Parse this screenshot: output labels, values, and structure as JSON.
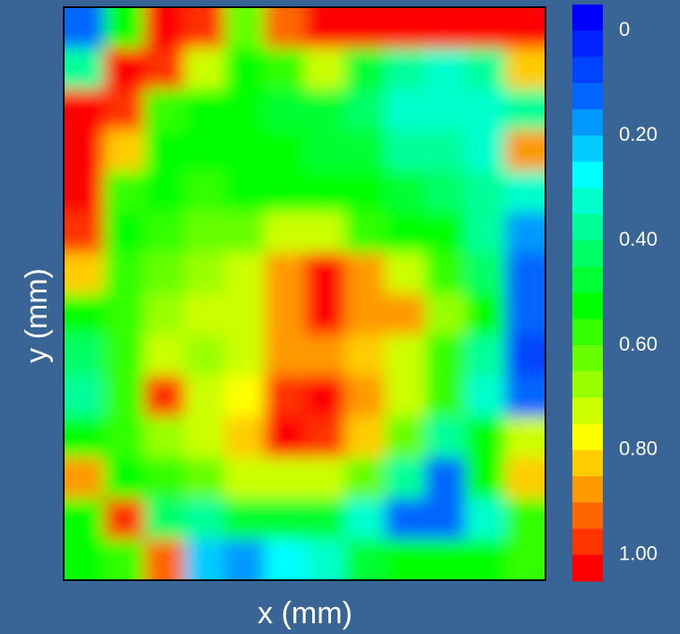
{
  "chart_data": {
    "type": "contour",
    "xlabel": "x (mm)",
    "ylabel": "y (mm)",
    "z": [
      [
        0.1,
        0.5,
        1.0,
        0.95,
        0.6,
        0.9,
        1.0,
        1.0,
        1.0,
        1.0,
        1.0,
        1.0
      ],
      [
        0.35,
        1.0,
        0.95,
        0.7,
        0.5,
        0.55,
        0.7,
        0.45,
        0.35,
        0.3,
        0.35,
        0.8
      ],
      [
        1.0,
        0.95,
        0.55,
        0.5,
        0.5,
        0.45,
        0.45,
        0.4,
        0.3,
        0.3,
        0.3,
        0.35
      ],
      [
        1.0,
        0.8,
        0.5,
        0.5,
        0.5,
        0.5,
        0.45,
        0.45,
        0.35,
        0.35,
        0.3,
        0.85
      ],
      [
        1.0,
        0.55,
        0.5,
        0.55,
        0.5,
        0.5,
        0.5,
        0.5,
        0.45,
        0.4,
        0.35,
        0.3
      ],
      [
        0.95,
        0.5,
        0.55,
        0.6,
        0.6,
        0.7,
        0.7,
        0.55,
        0.5,
        0.5,
        0.35,
        0.15
      ],
      [
        0.8,
        0.55,
        0.6,
        0.65,
        0.7,
        0.85,
        1.0,
        0.85,
        0.7,
        0.55,
        0.4,
        0.1
      ],
      [
        0.5,
        0.55,
        0.65,
        0.7,
        0.7,
        0.85,
        1.0,
        0.85,
        0.85,
        0.65,
        0.5,
        0.1
      ],
      [
        0.4,
        0.55,
        0.7,
        0.65,
        0.7,
        0.85,
        0.85,
        0.8,
        0.7,
        0.55,
        0.35,
        0.05
      ],
      [
        0.35,
        0.55,
        0.95,
        0.7,
        0.75,
        0.95,
        1.0,
        0.85,
        0.7,
        0.55,
        0.3,
        0.1
      ],
      [
        0.5,
        0.55,
        0.65,
        0.7,
        0.8,
        1.0,
        0.95,
        0.8,
        0.6,
        0.35,
        0.5,
        0.7
      ],
      [
        0.85,
        0.5,
        0.55,
        0.6,
        0.7,
        0.7,
        0.7,
        0.6,
        0.35,
        0.1,
        0.5,
        0.8
      ],
      [
        0.5,
        0.95,
        0.4,
        0.35,
        0.45,
        0.45,
        0.45,
        0.3,
        0.1,
        0.1,
        0.3,
        0.55
      ],
      [
        0.5,
        0.55,
        0.9,
        0.2,
        0.15,
        0.25,
        0.3,
        0.45,
        0.5,
        0.5,
        0.5,
        0.55
      ]
    ],
    "zlim": [
      -0.05,
      1.05
    ],
    "colors": [
      "#0000ff",
      "#0022ff",
      "#0044ff",
      "#0066ff",
      "#0099ff",
      "#00ccff",
      "#00ffff",
      "#00ffcc",
      "#00ff99",
      "#00ff66",
      "#00ff33",
      "#00ff00",
      "#33ff00",
      "#66ff00",
      "#99ff00",
      "#ccff00",
      "#ffff00",
      "#ffcc00",
      "#ff9900",
      "#ff6600",
      "#ff3300",
      "#ff0000"
    ],
    "colorbar_ticks": [
      0,
      {
        "value": 0.2,
        "label": "0.20"
      },
      {
        "value": 0.4,
        "label": "0.40"
      },
      {
        "value": 0.6,
        "label": "0.60"
      },
      {
        "value": 0.8,
        "label": "0.80"
      },
      {
        "value": 1.0,
        "label": "1.00"
      }
    ]
  }
}
